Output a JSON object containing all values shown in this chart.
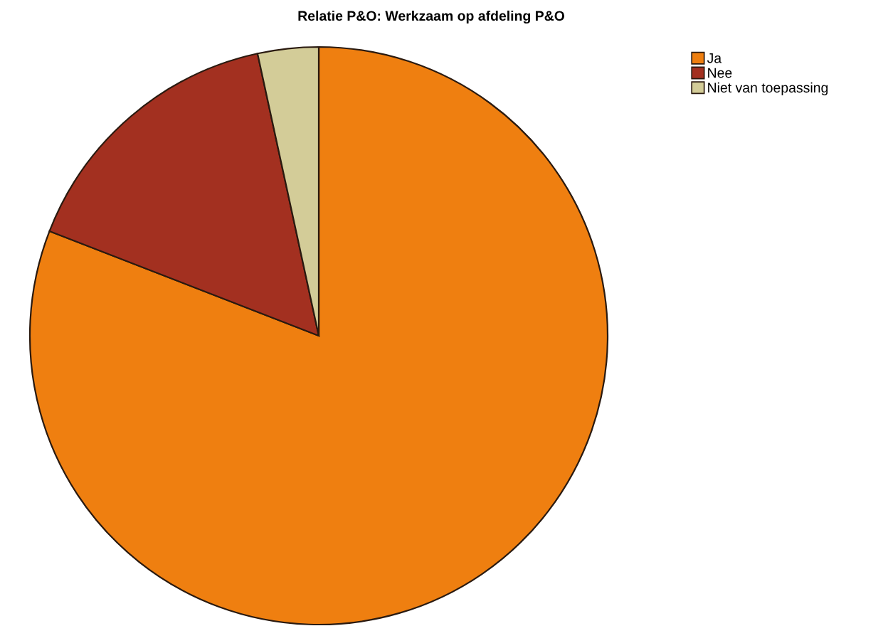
{
  "chart_data": {
    "type": "pie",
    "title": "Relatie P&O: Werkzaam op afdeling P&O",
    "categories": [
      "Ja",
      "Nee",
      "Niet van toepassing"
    ],
    "values": [
      80.9,
      15.7,
      3.4
    ],
    "colors": [
      "#ef7f10",
      "#a33020",
      "#d3cc98"
    ],
    "legend": "top right"
  }
}
